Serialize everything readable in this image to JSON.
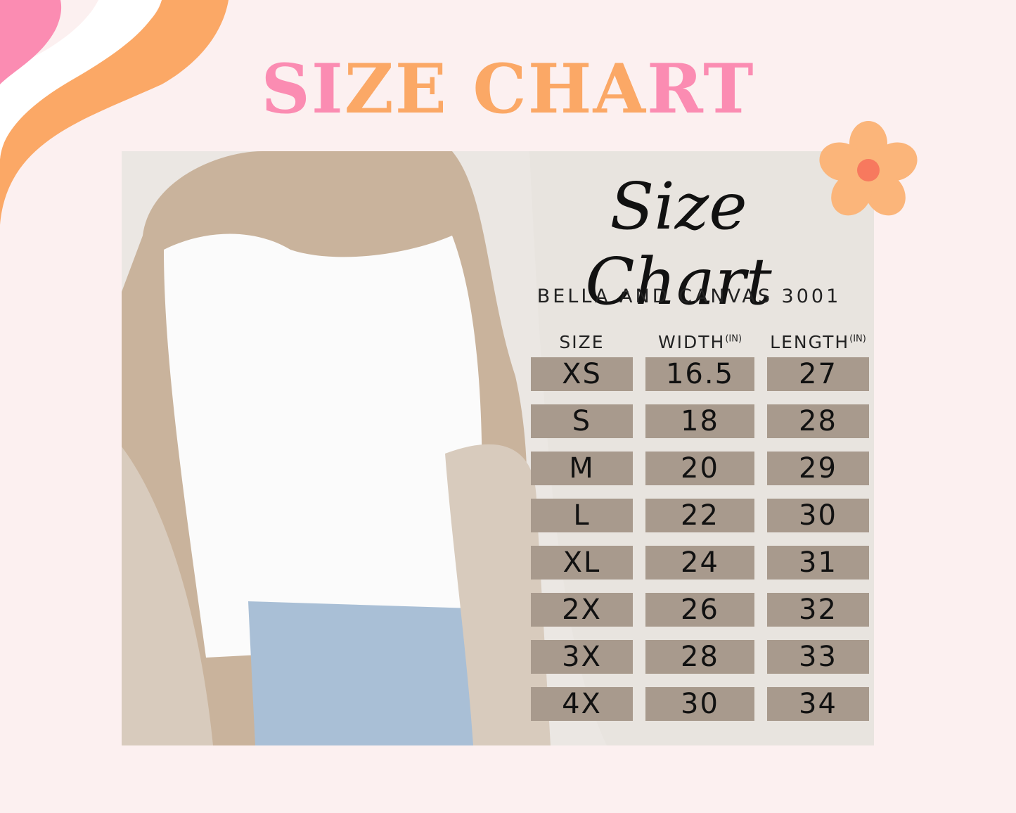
{
  "header": {
    "title_parts": [
      {
        "text": "SI",
        "color": "#fb8cb2"
      },
      {
        "text": "ZE CHA",
        "color": "#fba866"
      },
      {
        "text": "RT",
        "color": "#fb8cb2"
      }
    ]
  },
  "card": {
    "script_title": "Size Chart",
    "subtitle": "BELLA AND CANVAS 3001",
    "table": {
      "header": [
        {
          "text": "SIZE"
        },
        {
          "text": "WIDTH",
          "unit": "(IN)"
        },
        {
          "text": "LENGTH",
          "unit": "(IN)"
        }
      ],
      "rows": [
        [
          "XS",
          16.5,
          27
        ],
        [
          "S",
          18,
          28
        ],
        [
          "M",
          20,
          29
        ],
        [
          "L",
          22,
          30
        ],
        [
          "XL",
          24,
          31
        ],
        [
          "2X",
          26,
          32
        ],
        [
          "3X",
          28,
          33
        ],
        [
          "4X",
          30,
          34
        ]
      ]
    }
  }
}
